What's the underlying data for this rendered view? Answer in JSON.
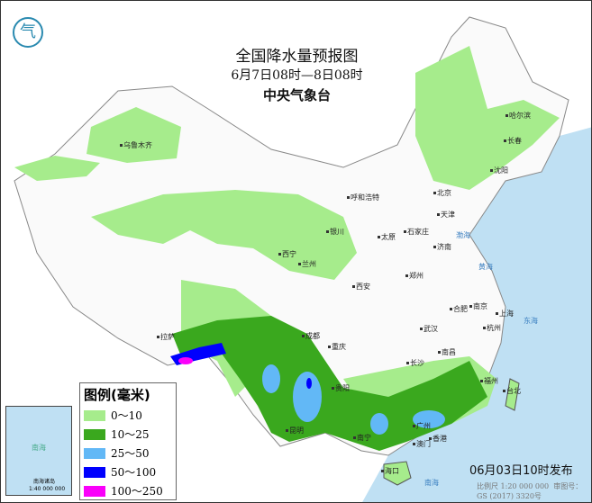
{
  "title": "全国降水量预报图",
  "period": "6月7日08时—8日08时",
  "issuer": "中央气象台",
  "issue_time": "06月03日10时发布",
  "scale": "比例尺 1:20 000 000",
  "map_no": "审图号：GS (2017) 3320号",
  "legend": {
    "title": "图例(毫米)",
    "items": [
      {
        "label": "0～10",
        "color": "#a6ec8c"
      },
      {
        "label": "10～25",
        "color": "#3aa81e"
      },
      {
        "label": "25～50",
        "color": "#62b8f6"
      },
      {
        "label": "50～100",
        "color": "#0000fe"
      },
      {
        "label": "100～250",
        "color": "#fa00fa"
      }
    ]
  },
  "inset": {
    "sea": "南海",
    "islands": "南海诸岛",
    "scale": "1:40 000 000"
  },
  "cities": [
    "乌鲁木齐",
    "哈尔滨",
    "长春",
    "沈阳",
    "呼和浩特",
    "北京",
    "天津",
    "石家庄",
    "太原",
    "济南",
    "银川",
    "西宁",
    "兰州",
    "郑州",
    "西安",
    "南京",
    "合肥",
    "上海",
    "杭州",
    "武汉",
    "成都",
    "重庆",
    "长沙",
    "南昌",
    "福州",
    "贵阳",
    "昆明",
    "南宁",
    "广州",
    "澳门",
    "香港",
    "台北",
    "拉萨",
    "海口"
  ],
  "sea_labels": [
    "渤海",
    "黄海",
    "东海",
    "南海"
  ]
}
